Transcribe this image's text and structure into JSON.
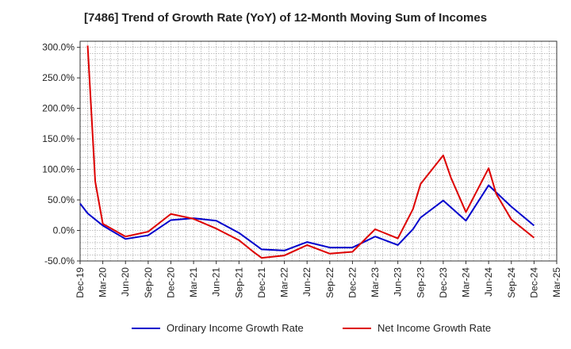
{
  "chart_data": {
    "type": "line",
    "title": "[7486]  Trend of Growth Rate (YoY) of 12-Month Moving Sum of Incomes",
    "xlabel": "",
    "ylabel": "",
    "ylim": [
      -50,
      310
    ],
    "y_ticks": [
      -50,
      0,
      50,
      100,
      150,
      200,
      250,
      300
    ],
    "y_tick_labels": [
      "-50.0%",
      "0.0%",
      "50.0%",
      "100.0%",
      "150.0%",
      "200.0%",
      "250.0%",
      "300.0%"
    ],
    "x_tick_labels": [
      "Dec-19",
      "Mar-20",
      "Jun-20",
      "Sep-20",
      "Dec-20",
      "Mar-21",
      "Jun-21",
      "Sep-21",
      "Dec-21",
      "Mar-22",
      "Jun-22",
      "Sep-22",
      "Dec-22",
      "Mar-23",
      "Jun-23",
      "Sep-23",
      "Dec-23",
      "Mar-24",
      "Jun-24",
      "Sep-24",
      "Dec-24",
      "Mar-25"
    ],
    "grid": true,
    "legend_position": "bottom",
    "series": [
      {
        "name": "Ordinary Income Growth Rate",
        "color": "#0000cc",
        "points": [
          [
            0,
            44
          ],
          [
            1,
            28
          ],
          [
            3,
            8
          ],
          [
            6,
            -14
          ],
          [
            9,
            -8
          ],
          [
            12,
            17
          ],
          [
            15,
            20
          ],
          [
            18,
            16
          ],
          [
            21,
            -4
          ],
          [
            24,
            -31
          ],
          [
            27,
            -33
          ],
          [
            30,
            -19
          ],
          [
            33,
            -28
          ],
          [
            36,
            -28
          ],
          [
            39,
            -10
          ],
          [
            42,
            -24
          ],
          [
            44,
            2
          ],
          [
            45,
            21
          ],
          [
            48,
            49
          ],
          [
            51,
            16
          ],
          [
            54,
            74
          ],
          [
            57,
            39
          ],
          [
            60,
            8
          ]
        ]
      },
      {
        "name": "Net Income Growth Rate",
        "color": "#dd0000",
        "points": [
          [
            1,
            303
          ],
          [
            2,
            80
          ],
          [
            3,
            11
          ],
          [
            6,
            -10
          ],
          [
            9,
            -2
          ],
          [
            12,
            27
          ],
          [
            15,
            19
          ],
          [
            18,
            3
          ],
          [
            21,
            -16
          ],
          [
            23,
            -36
          ],
          [
            24,
            -45
          ],
          [
            27,
            -41
          ],
          [
            30,
            -24
          ],
          [
            33,
            -38
          ],
          [
            36,
            -35
          ],
          [
            39,
            2
          ],
          [
            42,
            -13
          ],
          [
            44,
            35
          ],
          [
            45,
            76
          ],
          [
            48,
            123
          ],
          [
            49,
            87
          ],
          [
            51,
            30
          ],
          [
            54,
            102
          ],
          [
            55,
            60
          ],
          [
            57,
            18
          ],
          [
            60,
            -12
          ]
        ]
      }
    ]
  }
}
